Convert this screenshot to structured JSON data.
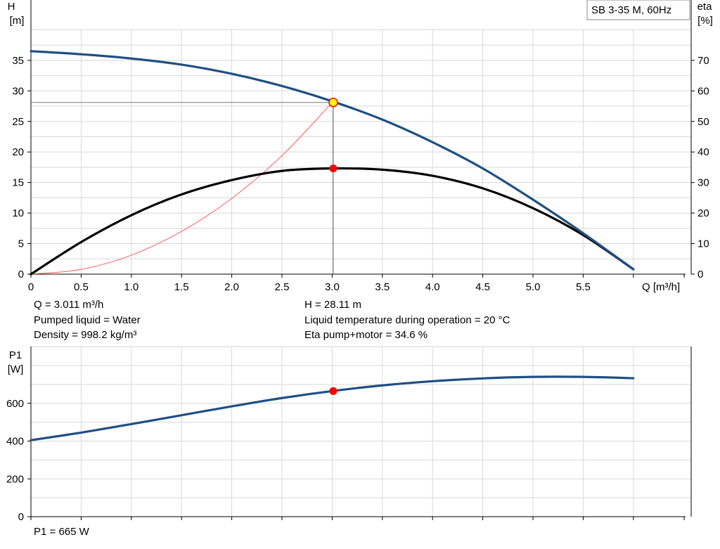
{
  "pump_label": "SB 3-35 M, 60Hz",
  "info": {
    "q": "Q = 3.011 m³/h",
    "liquid": "Pumped liquid = Water",
    "density": "Density = 998.2 kg/m³",
    "h": "H = 28.11 m",
    "temperature": "Liquid temperature during operation = 20 °C",
    "eta": "Eta pump+motor = 34.6 %",
    "p1": "P1 = 665 W"
  },
  "colors": {
    "head_curve": "#1f4f84",
    "eta_curve": "#000000",
    "system_curve": "#ff5a5a",
    "power_curve": "#1f4f84",
    "marker": "#ff0000",
    "duty_marker": "#ffff00",
    "grid": "#d8d8d8"
  },
  "chart_data": [
    {
      "type": "line",
      "title": "",
      "xlabel": "Q [m³/h]",
      "ylabel": "H [m]",
      "y2label": "eta [%]",
      "xlim": [
        0,
        6.5
      ],
      "ylim": [
        0,
        40
      ],
      "y2lim": [
        0,
        80
      ],
      "x_ticks": [
        "0",
        "0.5",
        "1.0",
        "1.5",
        "2.0",
        "2.5",
        "3.0",
        "3.5",
        "4.0",
        "4.5",
        "5.0",
        "5.5"
      ],
      "x_tick_values": [
        0,
        0.5,
        1.0,
        1.5,
        2.0,
        2.5,
        3.0,
        3.5,
        4.0,
        4.5,
        5.0,
        5.5
      ],
      "y_ticks": [
        "0",
        "5",
        "10",
        "15",
        "20",
        "25",
        "30",
        "35"
      ],
      "y_tick_values": [
        0,
        5,
        10,
        15,
        20,
        25,
        30,
        35
      ],
      "y2_ticks": [
        "0",
        "10",
        "20",
        "30",
        "40",
        "50",
        "60",
        "70"
      ],
      "y2_tick_values": [
        0,
        10,
        20,
        30,
        40,
        50,
        60,
        70
      ],
      "grid": true,
      "series": [
        {
          "key": "head",
          "axis": "left",
          "x": [
            0,
            0.5,
            1.0,
            1.5,
            2.0,
            2.5,
            3.0,
            3.5,
            4.0,
            4.5,
            5.0,
            5.5,
            6.0
          ],
          "values": [
            36.5,
            36.0,
            35.3,
            34.3,
            32.8,
            30.8,
            28.3,
            25.3,
            21.6,
            17.3,
            12.2,
            6.7,
            0.8
          ]
        },
        {
          "key": "eta",
          "axis": "right",
          "x": [
            0,
            0.5,
            1.0,
            1.5,
            2.0,
            2.5,
            3.0,
            3.5,
            4.0,
            4.5,
            5.0,
            5.5,
            6.0
          ],
          "values": [
            0,
            10.5,
            19.3,
            26.1,
            30.8,
            33.8,
            34.6,
            34.2,
            32.2,
            28.1,
            21.6,
            12.8,
            1.6
          ]
        },
        {
          "key": "system",
          "axis": "left",
          "x": [
            0,
            0.5,
            1.0,
            1.5,
            2.0,
            2.5,
            3.0
          ],
          "values": [
            0,
            0.78,
            3.1,
            7.0,
            12.4,
            19.4,
            28.1
          ]
        }
      ],
      "duty_point": {
        "x": 3.011,
        "head": 28.11,
        "eta": 34.6
      }
    },
    {
      "type": "line",
      "title": "",
      "xlabel": "",
      "ylabel": "P1 [W]",
      "xlim": [
        0,
        6.5
      ],
      "ylim": [
        0,
        800
      ],
      "y_ticks": [
        "0",
        "200",
        "400",
        "600"
      ],
      "y_tick_values": [
        0,
        200,
        400,
        600
      ],
      "grid": true,
      "series": [
        {
          "key": "power",
          "x": [
            0,
            0.5,
            1.0,
            1.5,
            2.0,
            2.5,
            3.0,
            3.5,
            4.0,
            4.5,
            5.0,
            5.5,
            6.0
          ],
          "values": [
            405,
            445,
            490,
            537,
            584,
            628,
            665,
            695,
            717,
            732,
            740,
            740,
            733
          ]
        }
      ],
      "duty_point": {
        "x": 3.011,
        "value": 665
      }
    }
  ]
}
